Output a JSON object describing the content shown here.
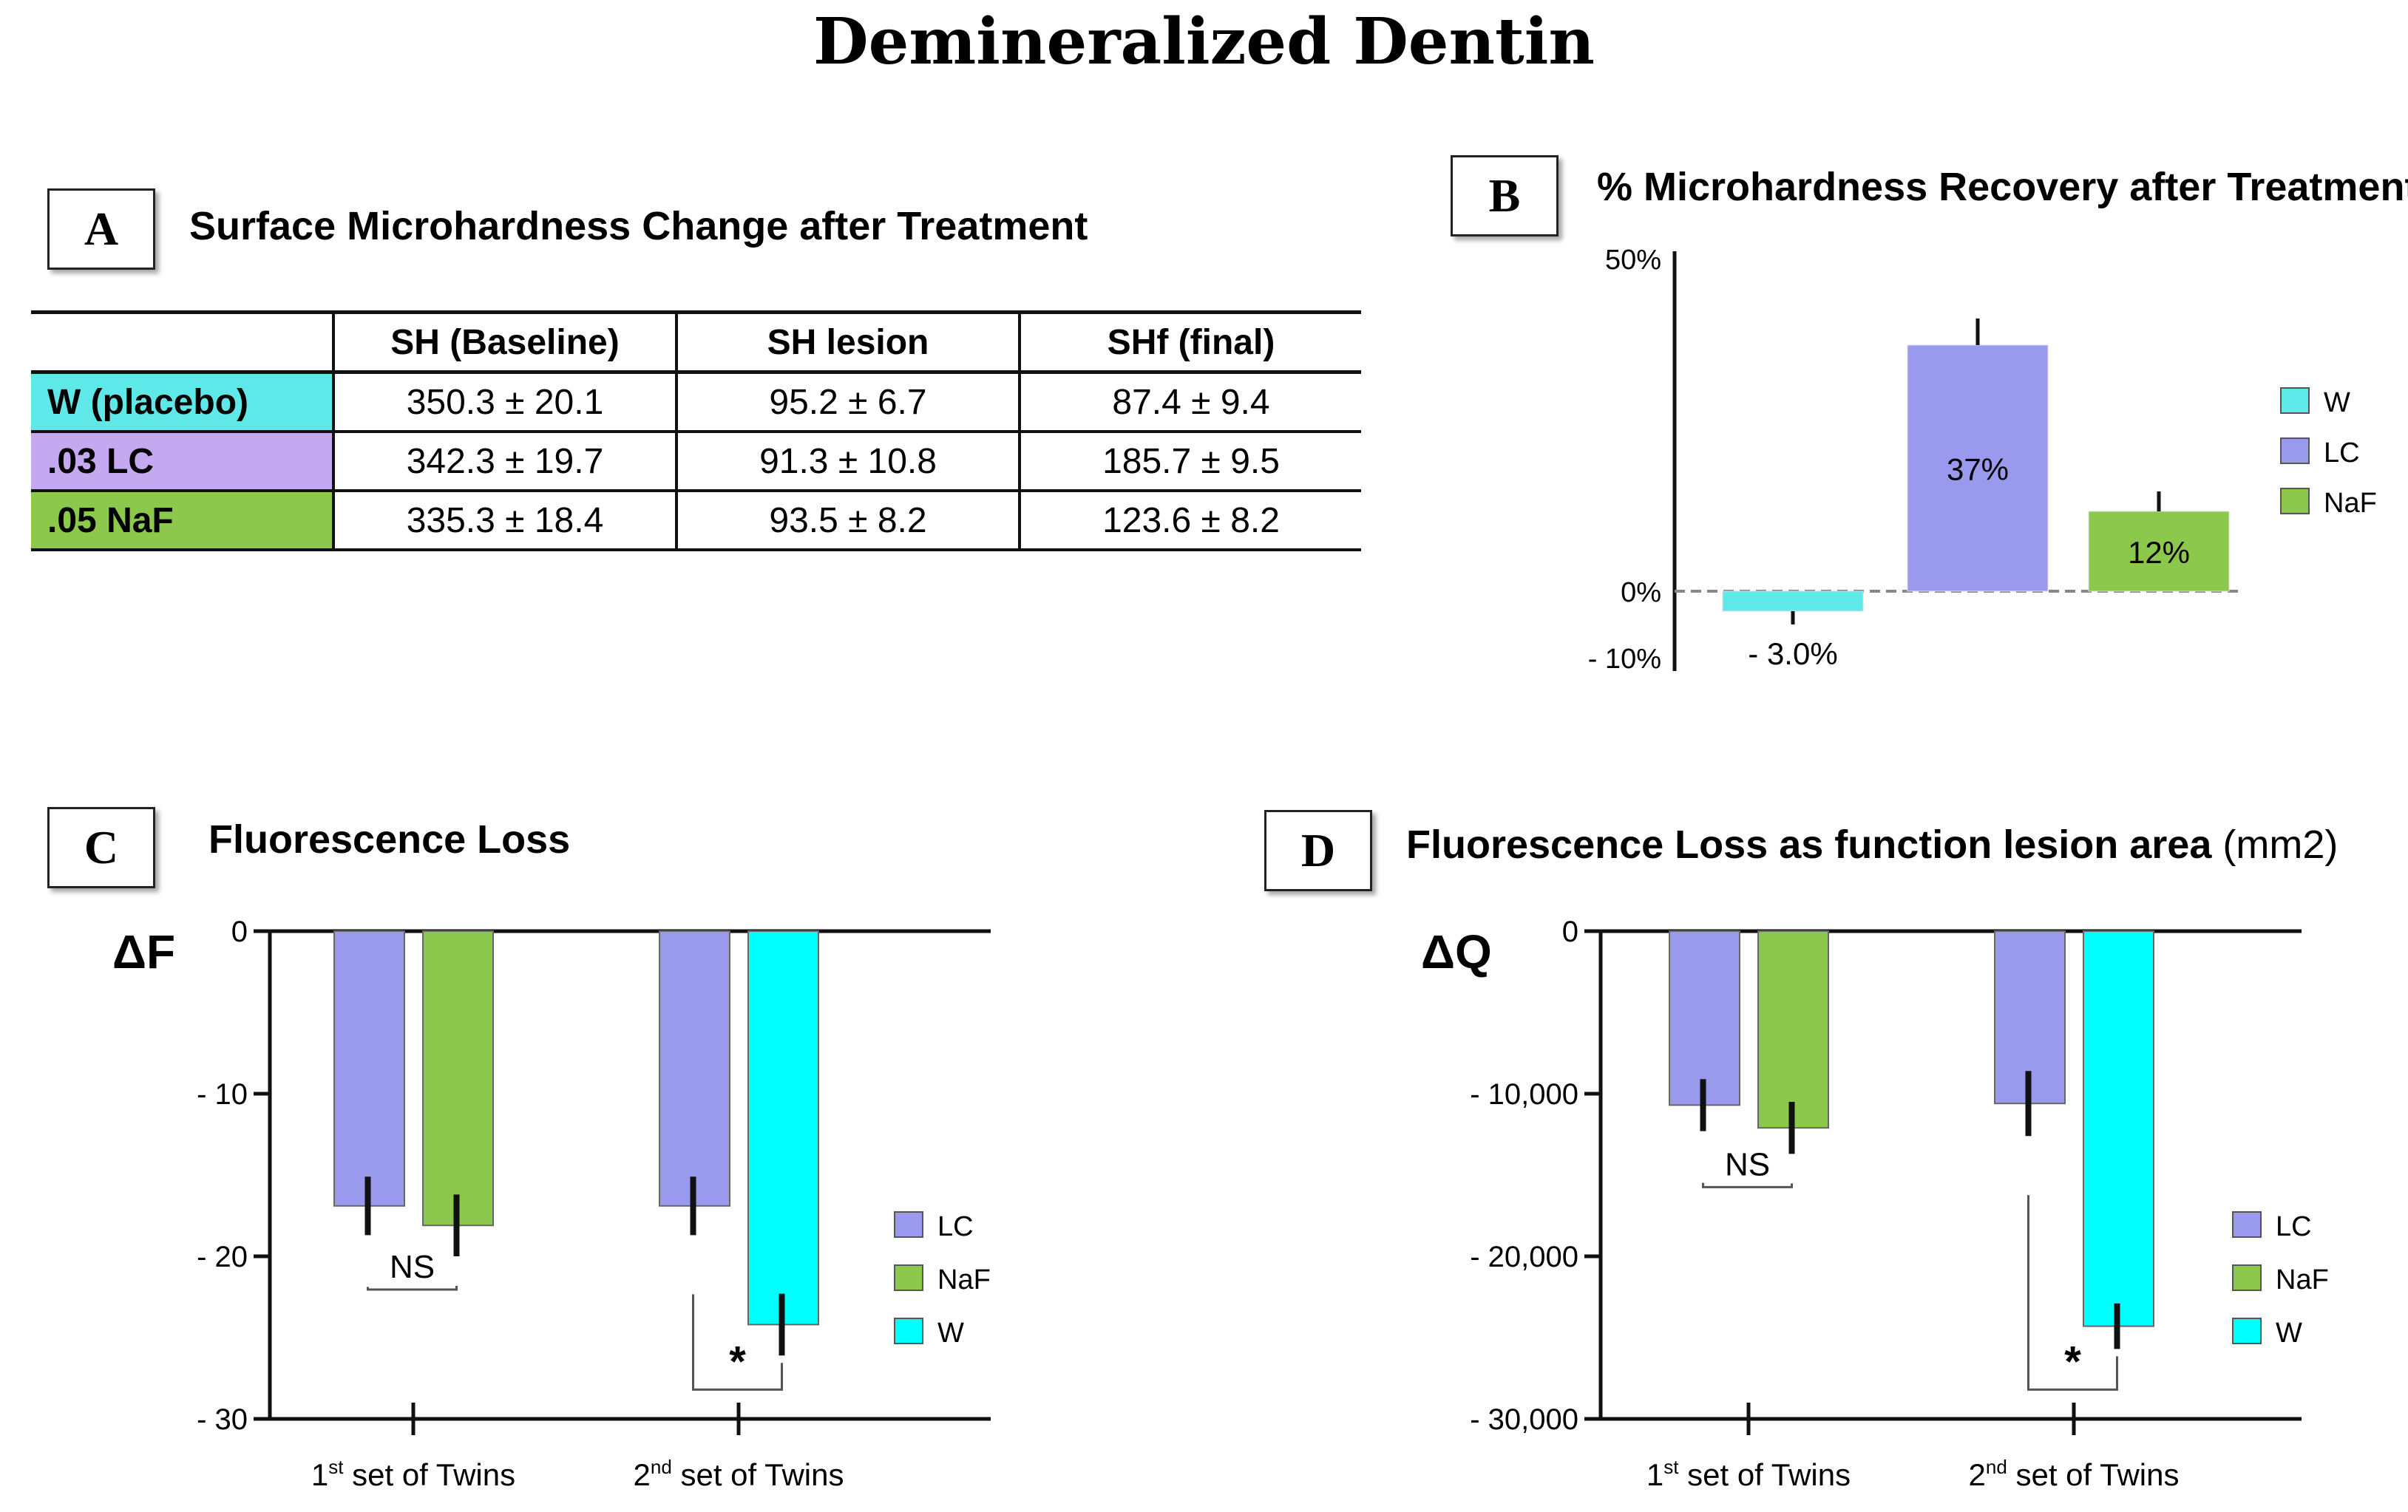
{
  "title": "Demineralized Dentin",
  "panels": {
    "a": {
      "letter": "A",
      "title": "Surface Microhardness Change after Treatment"
    },
    "b": {
      "letter": "B",
      "title": "% Microhardness Recovery after Treatment"
    },
    "c": {
      "letter": "C",
      "title": "Fluorescence Loss"
    },
    "d": {
      "letter": "D",
      "title": "Fluorescence Loss as function lesion area",
      "title_unit": "(mm2)"
    }
  },
  "colors": {
    "W": "#5ee8e8",
    "W_bright": "#00ffff",
    "LC": "#9999ee",
    "NaF": "#8cc84b",
    "LC_row": "#c4a8f0"
  },
  "chart_data": [
    {
      "type": "table",
      "panel": "A",
      "columns": [
        "",
        "SH (Baseline)",
        "SH lesion",
        "SHf (final)"
      ],
      "rows": [
        {
          "label": "W (placebo)",
          "color": "#5ee8e8",
          "cells": [
            "350.3 ± 20.1",
            "95.2 ± 6.7",
            "87.4 ± 9.4"
          ]
        },
        {
          "label": ".03 LC",
          "color": "#c4a8f0",
          "cells": [
            "342.3 ± 19.7",
            "91.3 ± 10.8",
            "185.7 ± 9.5"
          ]
        },
        {
          "label": ".05 NaF",
          "color": "#8cc84b",
          "cells": [
            "335.3 ± 18.4",
            "93.5 ± 8.2",
            "123.6 ± 8.2"
          ]
        }
      ]
    },
    {
      "type": "bar",
      "panel": "B",
      "categories": [
        "W",
        "LC",
        "NaF"
      ],
      "values": [
        -3.0,
        37,
        12
      ],
      "errors": [
        2,
        4,
        3
      ],
      "data_labels": [
        "- 3.0%",
        "37%",
        "12%"
      ],
      "yticks": [
        {
          "v": 50,
          "label": "50%"
        },
        {
          "v": 0,
          "label": "0%"
        },
        {
          "v": -10,
          "label": "- 10%"
        }
      ],
      "ylim": [
        -12,
        50
      ],
      "legend": {
        "position": "right",
        "entries": [
          "W",
          "LC",
          "NaF"
        ]
      }
    },
    {
      "type": "bar",
      "panel": "C",
      "ylabel": "ΔF",
      "categories": [
        "1st set of Twins",
        "2nd set of Twins"
      ],
      "category_labels": [
        {
          "main": "1",
          "sup": "st",
          "rest": " set of Twins"
        },
        {
          "main": "2",
          "sup": "nd",
          "rest": " set of Twins"
        }
      ],
      "groups": [
        [
          {
            "series": "LC",
            "value": -16.9,
            "error": 1.8
          },
          {
            "series": "NaF",
            "value": -18.1,
            "error": 1.9
          }
        ],
        [
          {
            "series": "LC",
            "value": -16.9,
            "error": 1.8
          },
          {
            "series": "W",
            "value": -24.2,
            "error": 1.9
          }
        ]
      ],
      "yticks": [
        {
          "v": 0,
          "label": "0"
        },
        {
          "v": -10,
          "label": "- 10"
        },
        {
          "v": -20,
          "label": "- 20"
        },
        {
          "v": -30,
          "label": "- 30"
        }
      ],
      "ylim": [
        -30,
        0
      ],
      "annotations": [
        "NS",
        "*"
      ],
      "legend": {
        "position": "right",
        "entries": [
          "LC",
          "NaF",
          "W"
        ]
      }
    },
    {
      "type": "bar",
      "panel": "D",
      "ylabel": "ΔQ",
      "categories": [
        "1st set of Twins",
        "2nd set of Twins"
      ],
      "category_labels": [
        {
          "main": "1",
          "sup": "st",
          "rest": " set of Twins"
        },
        {
          "main": "2",
          "sup": "nd",
          "rest": " set of Twins"
        }
      ],
      "groups": [
        [
          {
            "series": "LC",
            "value": -10700,
            "error": 1600
          },
          {
            "series": "NaF",
            "value": -12100,
            "error": 1600
          }
        ],
        [
          {
            "series": "LC",
            "value": -10600,
            "error": 2000
          },
          {
            "series": "W",
            "value": -24300,
            "error": 1400
          }
        ]
      ],
      "yticks": [
        {
          "v": 0,
          "label": "0"
        },
        {
          "v": -10000,
          "label": "- 10,000"
        },
        {
          "v": -20000,
          "label": "- 20,000"
        },
        {
          "v": -30000,
          "label": "- 30,000"
        }
      ],
      "ylim": [
        -30000,
        0
      ],
      "annotations": [
        "NS",
        "*"
      ],
      "legend": {
        "position": "right",
        "entries": [
          "LC",
          "NaF",
          "W"
        ]
      }
    }
  ]
}
